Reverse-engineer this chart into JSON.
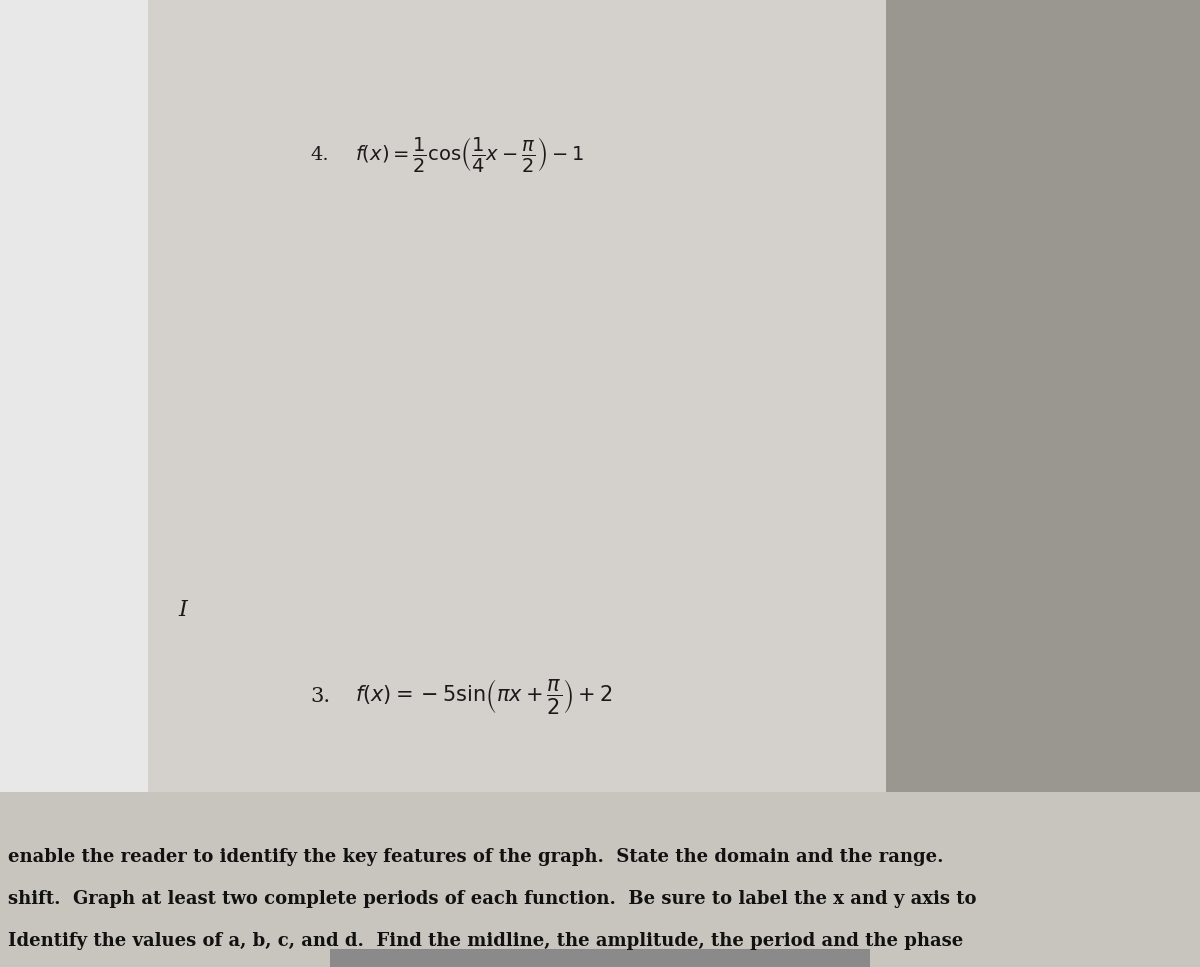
{
  "page_bg": "#a8a8a8",
  "header_bg_color": "#c8c5be",
  "header_text_line1": "Identify the values of a, b, c, and d.  Find the midline, the amplitude, the period and the phase",
  "header_text_line2": "shift.  Graph at least two complete periods of each function.  Be sure to label the x and y axis to",
  "header_text_line3": "enable the reader to identify the key features of the graph.  State the domain and the range.",
  "header_fontsize": 13.0,
  "header_text_color": "#111111",
  "left_blank_color": "#ffffff",
  "paper_color": "#d4d1cc",
  "outer_right_color": "#999590",
  "problem3_label": "3.",
  "problem3_formula": "$f(x)=-5\\sin\\!\\left(\\pi x+\\dfrac{\\pi}{2}\\right)+2$",
  "problem3_fontsize": 15,
  "problem4_label": "4.",
  "problem4_formula": "$f(x)=\\dfrac{1}{2}\\cos\\!\\left(\\dfrac{1}{4}x-\\dfrac{\\pi}{2}\\right)-1$",
  "problem4_fontsize": 14,
  "fig_width": 12.0,
  "fig_height": 9.67,
  "arc_color": "#bfbcb7",
  "arc_alpha": 0.7,
  "arc_linewidth": 0.6
}
